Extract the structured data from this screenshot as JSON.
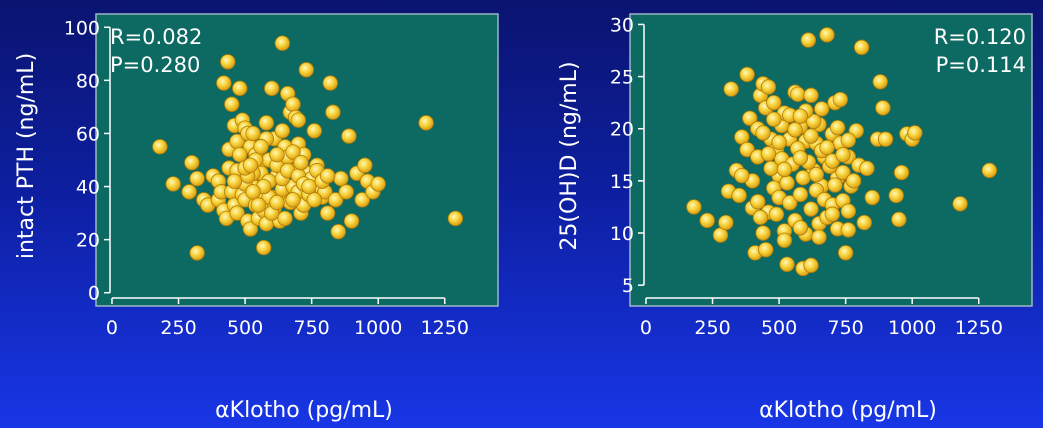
{
  "chart_data": [
    {
      "type": "scatter",
      "xlabel": "αKlotho (pg/mL)",
      "ylabel": "intact PTH (ng/mL)",
      "xlim": [
        -60,
        1450
      ],
      "ylim": [
        -5,
        105
      ],
      "xticks": [
        0,
        250,
        500,
        750,
        1000,
        1250
      ],
      "yticks": [
        0,
        20,
        40,
        60,
        80,
        100
      ],
      "annotation_lines": [
        "R=0.082",
        "P=0.280"
      ],
      "annotation_position": "top-left",
      "marker_color": "#f7c832",
      "points": [
        [
          180,
          55
        ],
        [
          230,
          41
        ],
        [
          290,
          38
        ],
        [
          300,
          49
        ],
        [
          320,
          15
        ],
        [
          320,
          43
        ],
        [
          345,
          35
        ],
        [
          360,
          33
        ],
        [
          380,
          44
        ],
        [
          400,
          35
        ],
        [
          420,
          79
        ],
        [
          435,
          87
        ],
        [
          440,
          54
        ],
        [
          450,
          71
        ],
        [
          460,
          63
        ],
        [
          470,
          57
        ],
        [
          480,
          77
        ],
        [
          490,
          65
        ],
        [
          500,
          62
        ],
        [
          510,
          60
        ],
        [
          520,
          55
        ],
        [
          530,
          60
        ],
        [
          540,
          52
        ],
        [
          550,
          48
        ],
        [
          560,
          45
        ],
        [
          570,
          17
        ],
        [
          580,
          64
        ],
        [
          590,
          50
        ],
        [
          600,
          77
        ],
        [
          610,
          58
        ],
        [
          620,
          44
        ],
        [
          630,
          36
        ],
        [
          640,
          94
        ],
        [
          650,
          40
        ],
        [
          660,
          75
        ],
        [
          670,
          68
        ],
        [
          680,
          71
        ],
        [
          690,
          66
        ],
        [
          700,
          56
        ],
        [
          710,
          30
        ],
        [
          720,
          52
        ],
        [
          730,
          84
        ],
        [
          740,
          45
        ],
        [
          750,
          43
        ],
        [
          760,
          61
        ],
        [
          770,
          48
        ],
        [
          780,
          39
        ],
        [
          790,
          36
        ],
        [
          800,
          38
        ],
        [
          810,
          30
        ],
        [
          820,
          79
        ],
        [
          830,
          68
        ],
        [
          840,
          35
        ],
        [
          850,
          23
        ],
        [
          860,
          43
        ],
        [
          880,
          38
        ],
        [
          890,
          59
        ],
        [
          900,
          27
        ],
        [
          920,
          45
        ],
        [
          940,
          35
        ],
        [
          950,
          48
        ],
        [
          960,
          42
        ],
        [
          980,
          38
        ],
        [
          1000,
          41
        ],
        [
          1180,
          64
        ],
        [
          1290,
          28
        ],
        [
          400,
          42
        ],
        [
          410,
          38
        ],
        [
          420,
          31
        ],
        [
          430,
          28
        ],
        [
          440,
          47
        ],
        [
          450,
          38
        ],
        [
          460,
          33
        ],
        [
          470,
          30
        ],
        [
          480,
          43
        ],
        [
          490,
          37
        ],
        [
          500,
          35
        ],
        [
          510,
          27
        ],
        [
          520,
          24
        ],
        [
          530,
          40
        ],
        [
          540,
          33
        ],
        [
          550,
          28
        ],
        [
          560,
          37
        ],
        [
          570,
          31
        ],
        [
          580,
          26
        ],
        [
          590,
          42
        ],
        [
          600,
          36
        ],
        [
          610,
          32
        ],
        [
          620,
          48
        ],
        [
          630,
          27
        ],
        [
          640,
          39
        ],
        [
          650,
          55
        ],
        [
          660,
          51
        ],
        [
          670,
          34
        ],
        [
          680,
          40
        ],
        [
          690,
          46
        ],
        [
          700,
          38
        ],
        [
          720,
          33
        ],
        [
          740,
          37
        ],
        [
          760,
          35
        ],
        [
          620,
          52
        ],
        [
          580,
          58
        ],
        [
          540,
          50
        ],
        [
          470,
          46
        ],
        [
          500,
          41
        ],
        [
          530,
          45
        ],
        [
          560,
          55
        ],
        [
          590,
          36
        ],
        [
          640,
          43
        ],
        [
          660,
          46
        ],
        [
          680,
          53
        ],
        [
          700,
          44
        ],
        [
          720,
          41
        ],
        [
          600,
          30
        ],
        [
          570,
          40
        ],
        [
          510,
          44
        ],
        [
          480,
          52
        ],
        [
          460,
          42
        ],
        [
          530,
          38
        ],
        [
          550,
          33
        ],
        [
          620,
          34
        ],
        [
          650,
          28
        ],
        [
          680,
          35
        ],
        [
          710,
          49
        ],
        [
          740,
          40
        ],
        [
          770,
          46
        ],
        [
          790,
          42
        ],
        [
          810,
          44
        ],
        [
          500,
          47
        ],
        [
          520,
          48
        ],
        [
          640,
          61
        ],
        [
          700,
          65
        ]
      ]
    },
    {
      "type": "scatter",
      "xlabel": "αKlotho (pg/mL)",
      "ylabel": "25(OH)D (ng/mL)",
      "xlim": [
        -60,
        1450
      ],
      "ylim": [
        3,
        31
      ],
      "xticks": [
        0,
        250,
        500,
        750,
        1000,
        1250
      ],
      "yticks": [
        5,
        10,
        15,
        20,
        25,
        30
      ],
      "annotation_lines": [
        "R=0.120",
        "P=0.114"
      ],
      "annotation_position": "top-right",
      "marker_color": "#f7c832",
      "points": [
        [
          180,
          12.5
        ],
        [
          230,
          11.2
        ],
        [
          280,
          9.8
        ],
        [
          300,
          11
        ],
        [
          310,
          14
        ],
        [
          320,
          23.8
        ],
        [
          340,
          16
        ],
        [
          360,
          19.2
        ],
        [
          380,
          25.2
        ],
        [
          390,
          21
        ],
        [
          400,
          12.4
        ],
        [
          410,
          8.1
        ],
        [
          420,
          20
        ],
        [
          430,
          23.2
        ],
        [
          440,
          24.3
        ],
        [
          450,
          22
        ],
        [
          460,
          24
        ],
        [
          470,
          19
        ],
        [
          480,
          22.5
        ],
        [
          490,
          18
        ],
        [
          500,
          15.5
        ],
        [
          510,
          20.3
        ],
        [
          520,
          21.5
        ],
        [
          530,
          7
        ],
        [
          540,
          19
        ],
        [
          560,
          23.5
        ],
        [
          570,
          23.3
        ],
        [
          580,
          20.2
        ],
        [
          590,
          6.6
        ],
        [
          600,
          18.8
        ],
        [
          610,
          28.5
        ],
        [
          620,
          6.9
        ],
        [
          630,
          16
        ],
        [
          640,
          18.6
        ],
        [
          650,
          20.4
        ],
        [
          660,
          14.5
        ],
        [
          670,
          17.3
        ],
        [
          680,
          29
        ],
        [
          700,
          19.5
        ],
        [
          710,
          22.5
        ],
        [
          720,
          15.3
        ],
        [
          730,
          22.8
        ],
        [
          740,
          15.8
        ],
        [
          750,
          8.1
        ],
        [
          760,
          17.3
        ],
        [
          770,
          14.5
        ],
        [
          790,
          19.8
        ],
        [
          800,
          16.5
        ],
        [
          810,
          27.8
        ],
        [
          820,
          11
        ],
        [
          830,
          16.2
        ],
        [
          850,
          13.4
        ],
        [
          870,
          19
        ],
        [
          880,
          24.5
        ],
        [
          890,
          22
        ],
        [
          900,
          19
        ],
        [
          940,
          13.6
        ],
        [
          950,
          11.3
        ],
        [
          960,
          15.8
        ],
        [
          980,
          19.5
        ],
        [
          1000,
          19
        ],
        [
          1010,
          19.6
        ],
        [
          1180,
          12.8
        ],
        [
          1290,
          16
        ],
        [
          400,
          15
        ],
        [
          420,
          13
        ],
        [
          440,
          10
        ],
        [
          460,
          12
        ],
        [
          470,
          16.2
        ],
        [
          480,
          14.3
        ],
        [
          490,
          11.8
        ],
        [
          500,
          13.4
        ],
        [
          510,
          17.1
        ],
        [
          520,
          10.2
        ],
        [
          530,
          14.8
        ],
        [
          540,
          12.9
        ],
        [
          550,
          16.6
        ],
        [
          560,
          11.2
        ],
        [
          570,
          18.1
        ],
        [
          580,
          13.7
        ],
        [
          590,
          15.3
        ],
        [
          600,
          9.9
        ],
        [
          610,
          16.8
        ],
        [
          620,
          12.3
        ],
        [
          630,
          20.7
        ],
        [
          640,
          14.1
        ],
        [
          650,
          10.9
        ],
        [
          660,
          17.9
        ],
        [
          670,
          13.2
        ],
        [
          680,
          11.5
        ],
        [
          690,
          16.4
        ],
        [
          700,
          12.7
        ],
        [
          710,
          14.6
        ],
        [
          720,
          10.4
        ],
        [
          730,
          18.6
        ],
        [
          740,
          13.1
        ],
        [
          760,
          12.1
        ],
        [
          780,
          15
        ],
        [
          360,
          15.5
        ],
        [
          380,
          18
        ],
        [
          420,
          17.3
        ],
        [
          440,
          19.6
        ],
        [
          460,
          17.6
        ],
        [
          480,
          20.9
        ],
        [
          500,
          18.7
        ],
        [
          520,
          16.1
        ],
        [
          540,
          21.3
        ],
        [
          560,
          19.9
        ],
        [
          580,
          17.2
        ],
        [
          600,
          21.7
        ],
        [
          620,
          19.3
        ],
        [
          640,
          15.6
        ],
        [
          660,
          21.9
        ],
        [
          680,
          18.2
        ],
        [
          700,
          16.9
        ],
        [
          720,
          20.1
        ],
        [
          740,
          17.5
        ],
        [
          760,
          18.9
        ],
        [
          620,
          23.2
        ],
        [
          580,
          21.2
        ],
        [
          430,
          11.5
        ],
        [
          350,
          13.6
        ],
        [
          450,
          8.4
        ],
        [
          520,
          9.3
        ],
        [
          580,
          10.5
        ],
        [
          650,
          9.6
        ],
        [
          700,
          11.8
        ],
        [
          760,
          10.3
        ]
      ]
    }
  ]
}
